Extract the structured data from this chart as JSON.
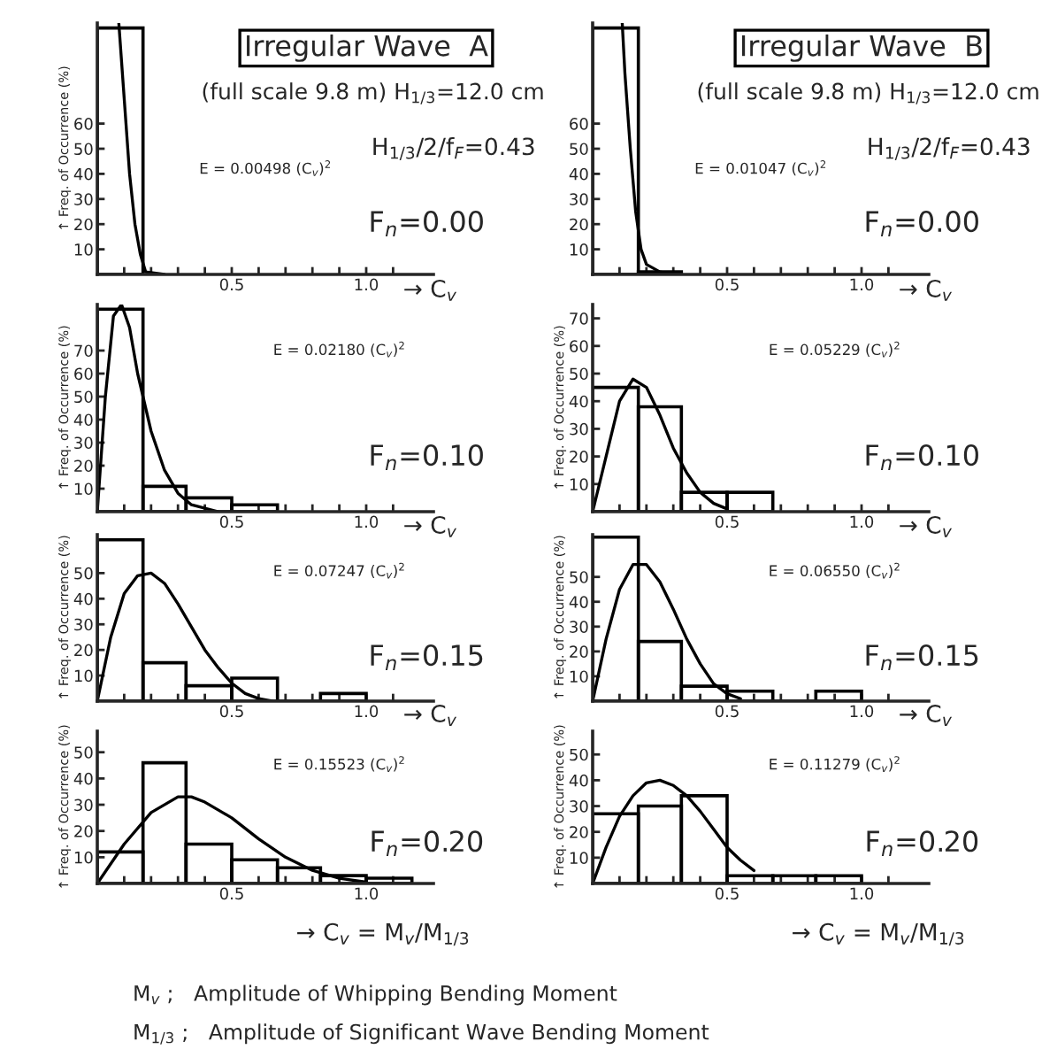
{
  "chart_data": [
    {
      "type": "histogram",
      "title": "Irregular Wave  A",
      "subtitle": "(full scale 9.8 m) H$_{1/3}$=12.0 cm",
      "xlabel": "→ C$_{v}$",
      "ylabel": "↑ Freq. of Occurrence (%)",
      "color": "#000000",
      "bins": [
        0,
        0.17
      ],
      "values": [
        98
      ],
      "series": [
        {
          "type": "line",
          "color": "#000000",
          "x": [
            0.08,
            0.1,
            0.12,
            0.14,
            0.16,
            0.18,
            0.25
          ],
          "values": [
            100,
            70,
            40,
            20,
            8,
            1,
            0
          ]
        }
      ],
      "xlim": [
        0,
        1.25
      ],
      "ylim": [
        0,
        100
      ],
      "xticks": [
        {
          "value": 0.5,
          "label": "0.5"
        },
        {
          "value": 1.0,
          "label": "1.0"
        },
        {
          "value": 0.1,
          "label": null
        },
        {
          "value": 0.2,
          "label": null
        },
        {
          "value": 0.3,
          "label": null
        },
        {
          "value": 0.4,
          "label": null
        },
        {
          "value": 0.6,
          "label": null
        },
        {
          "value": 0.7,
          "label": null
        },
        {
          "value": 0.8,
          "label": null
        },
        {
          "value": 0.9,
          "label": null
        },
        {
          "value": 1.1,
          "label": null
        }
      ],
      "yticks": [
        10,
        20,
        30,
        40,
        50,
        60
      ],
      "annotations": [
        "E = 0.00498 (C$_{v}$)$^{2}$",
        "F$_{n}$=0.00",
        "H$_{1/3}$/2/f$_{F}$=0.43"
      ]
    },
    {
      "type": "histogram",
      "title": "Irregular Wave  B",
      "subtitle": "(full scale 9.8 m) H$_{1/3}$=12.0 cm",
      "xlabel": "→ C$_{v}$",
      "color": "#000000",
      "bins": [
        0,
        0.17,
        0.33
      ],
      "values": [
        98,
        1
      ],
      "series": [
        {
          "type": "line",
          "color": "#000000",
          "x": [
            0.11,
            0.12,
            0.14,
            0.16,
            0.18,
            0.2,
            0.25,
            0.3
          ],
          "values": [
            100,
            80,
            50,
            25,
            10,
            4,
            1,
            0
          ]
        }
      ],
      "xlim": [
        0,
        1.25
      ],
      "ylim": [
        0,
        100
      ],
      "xticks": [
        {
          "value": 0.5,
          "label": "0.5"
        },
        {
          "value": 1.0,
          "label": "1.0"
        },
        {
          "value": 0.1,
          "label": null
        },
        {
          "value": 0.2,
          "label": null
        },
        {
          "value": 0.3,
          "label": null
        },
        {
          "value": 0.4,
          "label": null
        },
        {
          "value": 0.6,
          "label": null
        },
        {
          "value": 0.7,
          "label": null
        },
        {
          "value": 0.8,
          "label": null
        },
        {
          "value": 0.9,
          "label": null
        },
        {
          "value": 1.1,
          "label": null
        }
      ],
      "yticks": [
        10,
        20,
        30,
        40,
        50,
        60
      ],
      "annotations": [
        "E = 0.01047 (C$_{v}$)$^{2}$",
        "F$_{n}$=0.00",
        "H$_{1/3}$/2/f$_{F}$=0.43"
      ]
    },
    {
      "type": "histogram",
      "xlabel": "→ C$_{v}$",
      "ylabel": "↑ Freq. of Occurrence (%)",
      "color": "#000000",
      "bins": [
        0,
        0.17,
        0.33,
        0.5,
        0.67
      ],
      "values": [
        88,
        11,
        6,
        3
      ],
      "series": [
        {
          "type": "line",
          "color": "#000000",
          "x": [
            0,
            0.03,
            0.06,
            0.09,
            0.12,
            0.15,
            0.2,
            0.25,
            0.3,
            0.35,
            0.45
          ],
          "values": [
            0,
            50,
            85,
            90,
            80,
            60,
            35,
            18,
            8,
            3,
            0
          ]
        }
      ],
      "xlim": [
        0,
        1.25
      ],
      "ylim": [
        0,
        90
      ],
      "xticks": [
        {
          "value": 0.5,
          "label": "0.5"
        },
        {
          "value": 1.0,
          "label": "1.0"
        },
        {
          "value": 0.1,
          "label": null
        },
        {
          "value": 0.2,
          "label": null
        },
        {
          "value": 0.3,
          "label": null
        },
        {
          "value": 0.4,
          "label": null
        },
        {
          "value": 0.6,
          "label": null
        },
        {
          "value": 0.7,
          "label": null
        },
        {
          "value": 0.8,
          "label": null
        },
        {
          "value": 0.9,
          "label": null
        },
        {
          "value": 1.1,
          "label": null
        }
      ],
      "yticks": [
        10,
        20,
        30,
        40,
        50,
        60,
        70
      ],
      "annotations": [
        "E = 0.02180 (C$_{v}$)$^{2}$",
        "F$_{n}$=0.10"
      ]
    },
    {
      "type": "histogram",
      "xlabel": "→ C$_{v}$",
      "ylabel": "↑ Freq. of Occurrence (%)",
      "color": "#000000",
      "bins": [
        0,
        0.17,
        0.33,
        0.5,
        0.67
      ],
      "values": [
        45,
        38,
        7,
        7
      ],
      "series": [
        {
          "type": "line",
          "color": "#000000",
          "x": [
            0,
            0.05,
            0.1,
            0.15,
            0.2,
            0.25,
            0.3,
            0.35,
            0.4,
            0.45,
            0.5
          ],
          "values": [
            0,
            20,
            40,
            48,
            45,
            35,
            23,
            14,
            7,
            3,
            1
          ]
        }
      ],
      "xlim": [
        0,
        1.25
      ],
      "ylim": [
        0,
        75
      ],
      "xticks": [
        {
          "value": 0.5,
          "label": "0.5"
        },
        {
          "value": 1.0,
          "label": "1.0"
        },
        {
          "value": 0.1,
          "label": null
        },
        {
          "value": 0.2,
          "label": null
        },
        {
          "value": 0.3,
          "label": null
        },
        {
          "value": 0.4,
          "label": null
        },
        {
          "value": 0.6,
          "label": null
        },
        {
          "value": 0.7,
          "label": null
        },
        {
          "value": 0.8,
          "label": null
        },
        {
          "value": 0.9,
          "label": null
        },
        {
          "value": 1.1,
          "label": null
        }
      ],
      "yticks": [
        10,
        20,
        30,
        40,
        50,
        60,
        70
      ],
      "annotations": [
        "E = 0.05229 (C$_{v}$)$^{2}$",
        "F$_{n}$=0.10"
      ]
    },
    {
      "type": "histogram",
      "xlabel": "→ C$_{v}$",
      "ylabel": "↑ Freq. of Occurrence (%)",
      "color": "#000000",
      "bins": [
        0,
        0.17,
        0.33,
        0.5,
        0.67,
        0.83,
        1.0
      ],
      "values": [
        63,
        15,
        6,
        9,
        0,
        3
      ],
      "series": [
        {
          "type": "line",
          "color": "#000000",
          "x": [
            0,
            0.05,
            0.1,
            0.15,
            0.2,
            0.25,
            0.3,
            0.35,
            0.4,
            0.45,
            0.5,
            0.55,
            0.6,
            0.65
          ],
          "values": [
            0,
            25,
            42,
            49,
            50,
            46,
            38,
            29,
            20,
            13,
            7,
            3,
            1,
            0
          ]
        }
      ],
      "xlim": [
        0,
        1.25
      ],
      "ylim": [
        0,
        65
      ],
      "xticks": [
        {
          "value": 0.5,
          "label": "0.5"
        },
        {
          "value": 1.0,
          "label": "1.0"
        },
        {
          "value": 0.1,
          "label": null
        },
        {
          "value": 0.2,
          "label": null
        },
        {
          "value": 0.3,
          "label": null
        },
        {
          "value": 0.4,
          "label": null
        },
        {
          "value": 0.6,
          "label": null
        },
        {
          "value": 0.7,
          "label": null
        },
        {
          "value": 0.8,
          "label": null
        },
        {
          "value": 0.9,
          "label": null
        },
        {
          "value": 1.1,
          "label": null
        }
      ],
      "yticks": [
        10,
        20,
        30,
        40,
        50
      ],
      "annotations": [
        "E = 0.07247 (C$_{v}$)$^{2}$",
        "F$_{n}$=0.15"
      ]
    },
    {
      "type": "histogram",
      "xlabel": "→ C$_{v}$",
      "ylabel": "↑ Freq. of Occurrence (%)",
      "color": "#000000",
      "bins": [
        0,
        0.17,
        0.33,
        0.5,
        0.67,
        0.83,
        1.0
      ],
      "values": [
        66,
        24,
        6,
        4,
        0,
        4
      ],
      "series": [
        {
          "type": "line",
          "color": "#000000",
          "x": [
            0,
            0.05,
            0.1,
            0.15,
            0.2,
            0.25,
            0.3,
            0.35,
            0.4,
            0.45,
            0.5,
            0.55
          ],
          "values": [
            0,
            25,
            45,
            55,
            55,
            48,
            37,
            25,
            15,
            7,
            3,
            1
          ]
        }
      ],
      "xlim": [
        0,
        1.25
      ],
      "ylim": [
        0,
        67
      ],
      "xticks": [
        {
          "value": 0.5,
          "label": "0.5"
        },
        {
          "value": 1.0,
          "label": "1.0"
        },
        {
          "value": 0.1,
          "label": null
        },
        {
          "value": 0.2,
          "label": null
        },
        {
          "value": 0.3,
          "label": null
        },
        {
          "value": 0.4,
          "label": null
        },
        {
          "value": 0.6,
          "label": null
        },
        {
          "value": 0.7,
          "label": null
        },
        {
          "value": 0.8,
          "label": null
        },
        {
          "value": 0.9,
          "label": null
        },
        {
          "value": 1.1,
          "label": null
        }
      ],
      "yticks": [
        10,
        20,
        30,
        40,
        50
      ],
      "annotations": [
        "E = 0.06550 (C$_{v}$)$^{2}$",
        "F$_{n}$=0.15"
      ]
    },
    {
      "type": "histogram",
      "xlabel": "→ C$_{v}$ = M$_{v}$/M$_{1/3}$",
      "ylabel": "↑ Freq. of Occurrence (%)",
      "color": "#000000",
      "bins": [
        0,
        0.17,
        0.33,
        0.5,
        0.67,
        0.83,
        1.0,
        1.17
      ],
      "values": [
        12,
        46,
        15,
        9,
        6,
        3,
        2
      ],
      "series": [
        {
          "type": "line",
          "color": "#000000",
          "x": [
            0,
            0.1,
            0.2,
            0.3,
            0.35,
            0.4,
            0.5,
            0.6,
            0.7,
            0.8,
            0.9,
            1.0
          ],
          "values": [
            0,
            15,
            27,
            33,
            33,
            31,
            25,
            17,
            10,
            5,
            2,
            0.5
          ]
        }
      ],
      "xlim": [
        0,
        1.25
      ],
      "ylim": [
        0,
        58
      ],
      "xticks": [
        {
          "value": 0.5,
          "label": "0.5"
        },
        {
          "value": 1.0,
          "label": "1.0"
        },
        {
          "value": 0.1,
          "label": null
        },
        {
          "value": 0.2,
          "label": null
        },
        {
          "value": 0.3,
          "label": null
        },
        {
          "value": 0.4,
          "label": null
        },
        {
          "value": 0.6,
          "label": null
        },
        {
          "value": 0.7,
          "label": null
        },
        {
          "value": 0.8,
          "label": null
        },
        {
          "value": 0.9,
          "label": null
        },
        {
          "value": 1.1,
          "label": null
        }
      ],
      "yticks": [
        10,
        20,
        30,
        40,
        50
      ],
      "annotations": [
        "E = 0.15523 (C$_{v}$)$^{2}$",
        "F$_{n}$=0.20"
      ]
    },
    {
      "type": "histogram",
      "xlabel": "→ C$_{v}$ = M$_{v}$/M$_{1/3}$",
      "ylabel": "↑ Freq. of Occurrence (%)",
      "color": "#000000",
      "bins": [
        0,
        0.17,
        0.33,
        0.5,
        0.67,
        0.83,
        1.0
      ],
      "values": [
        27,
        30,
        34,
        3,
        3,
        3
      ],
      "series": [
        {
          "type": "line",
          "color": "#000000",
          "x": [
            0,
            0.05,
            0.1,
            0.15,
            0.2,
            0.25,
            0.3,
            0.35,
            0.4,
            0.45,
            0.5,
            0.55,
            0.6
          ],
          "values": [
            0,
            14,
            26,
            34,
            39,
            40,
            38,
            34,
            28,
            21,
            14,
            9,
            5
          ]
        }
      ],
      "xlim": [
        0,
        1.25
      ],
      "ylim": [
        0,
        59
      ],
      "xticks": [
        {
          "value": 0.5,
          "label": "0.5"
        },
        {
          "value": 1.0,
          "label": "1.0"
        },
        {
          "value": 0.1,
          "label": null
        },
        {
          "value": 0.2,
          "label": null
        },
        {
          "value": 0.3,
          "label": null
        },
        {
          "value": 0.4,
          "label": null
        },
        {
          "value": 0.6,
          "label": null
        },
        {
          "value": 0.7,
          "label": null
        },
        {
          "value": 0.8,
          "label": null
        },
        {
          "value": 0.9,
          "label": null
        },
        {
          "value": 1.1,
          "label": null
        }
      ],
      "yticks": [
        10,
        20,
        30,
        40,
        50
      ],
      "annotations": [
        "E = 0.11279 (C$_{v}$)$^{2}$",
        "F$_{n}$=0.20",
        "M$_{v}$ ;   Amplitude of Whipping Bending Moment",
        "M$_{1/3}$ ;   Amplitude of Significant Wave Bending Moment"
      ]
    }
  ]
}
